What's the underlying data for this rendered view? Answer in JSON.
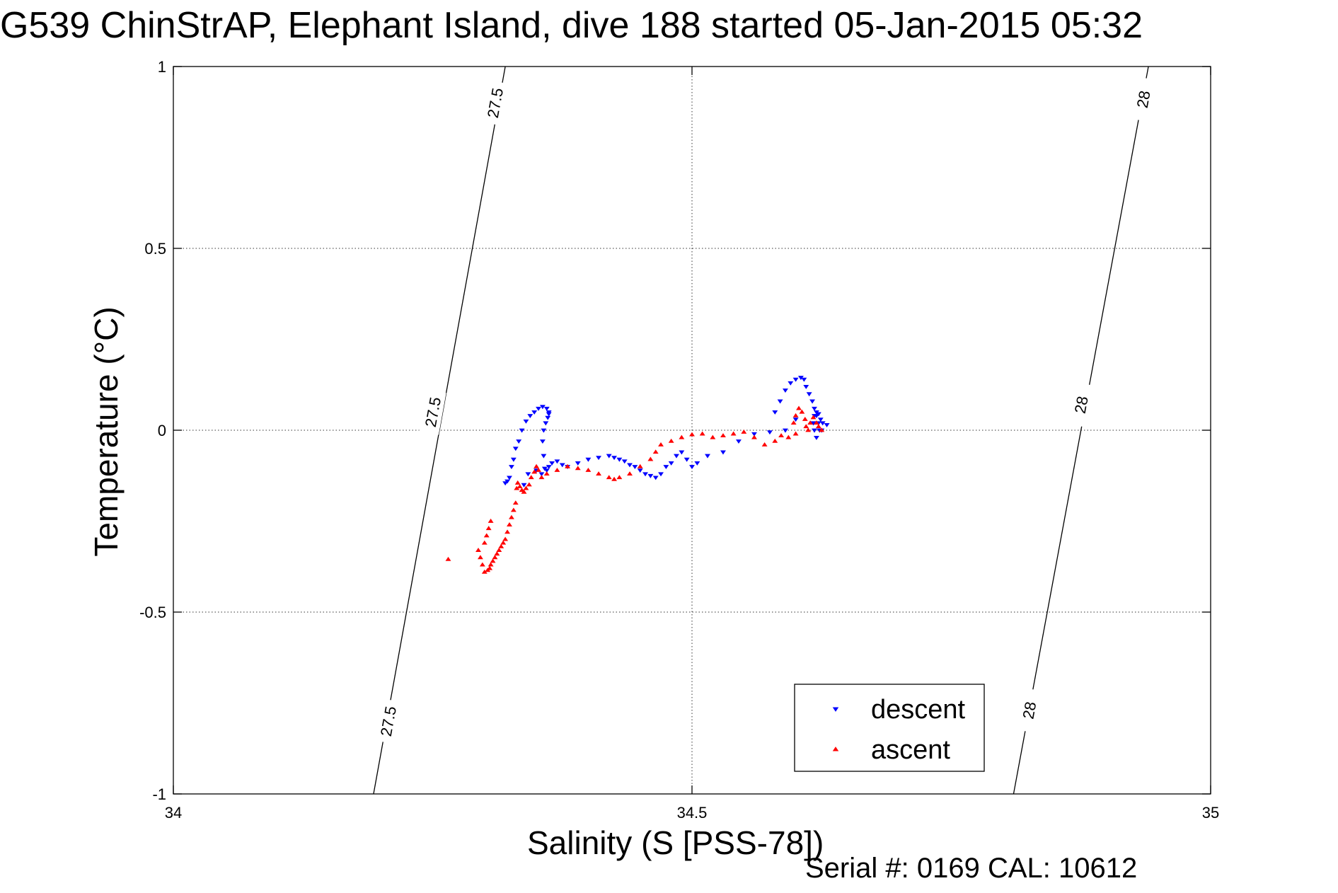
{
  "page": {
    "title": "G539 ChinStrAP, Elephant Island, dive 188 started 05-Jan-2015 05:32",
    "footer": "Serial #: 0169 CAL: 10612"
  },
  "chart_data": {
    "type": "scatter",
    "title": "G539 ChinStrAP, Elephant Island, dive 188 started 05-Jan-2015 05:32",
    "xlabel": "Salinity (S [PSS-78])",
    "ylabel": "Temperature (°C)",
    "xlim": [
      34,
      35
    ],
    "ylim": [
      -1,
      1
    ],
    "xticks": [
      34,
      34.5,
      35
    ],
    "xtick_labels": [
      "34",
      "34.5",
      "35"
    ],
    "yticks": [
      1,
      0.5,
      0,
      -0.5,
      -1
    ],
    "ytick_labels": [
      "1",
      "0.5",
      "0",
      "-0.5",
      "-1"
    ],
    "grid": true,
    "legend_position": "bottom-right",
    "colors": {
      "descent": "#0000ff",
      "ascent": "#ff0000",
      "contour": "#000000"
    },
    "density_contours": [
      {
        "label": "27.5",
        "points": [
          [
            34.193,
            -1.0
          ],
          [
            34.32,
            1.0
          ]
        ],
        "label_positions": [
          [
            34.207,
            -0.8
          ],
          [
            34.25,
            0.05
          ],
          [
            34.31,
            0.9
          ]
        ]
      },
      {
        "label": "28",
        "points": [
          [
            34.81,
            -1.0
          ],
          [
            34.94,
            1.0
          ]
        ],
        "label_positions": [
          [
            34.825,
            -0.77
          ],
          [
            34.875,
            0.07
          ],
          [
            34.935,
            0.91
          ]
        ]
      }
    ],
    "series": [
      {
        "name": "descent",
        "marker": "triangle-down",
        "x": [
          34.58,
          34.585,
          34.59,
          34.595,
          34.6,
          34.605,
          34.608,
          34.61,
          34.613,
          34.616,
          34.618,
          34.62,
          34.622,
          34.623,
          34.62,
          34.618,
          34.617,
          34.618,
          34.62,
          34.622,
          34.624,
          34.626,
          34.63,
          34.625,
          34.6,
          34.59,
          34.575,
          34.56,
          34.545,
          34.53,
          34.515,
          34.505,
          34.5,
          34.495,
          34.49,
          34.485,
          34.48,
          34.475,
          34.47,
          34.465,
          34.46,
          34.455,
          34.45,
          34.445,
          34.44,
          34.435,
          34.43,
          34.425,
          34.42,
          34.41,
          34.4,
          34.39,
          34.38,
          34.375,
          34.37,
          34.365,
          34.362,
          34.36,
          34.358,
          34.357,
          34.356,
          34.357,
          34.359,
          34.361,
          34.362,
          34.362,
          34.36,
          34.356,
          34.352,
          34.348,
          34.344,
          34.34,
          34.336,
          34.333,
          34.33,
          34.328,
          34.326,
          34.324,
          34.322,
          34.32,
          34.338,
          34.342,
          34.35,
          34.355
        ],
        "y": [
          0.05,
          0.08,
          0.11,
          0.13,
          0.14,
          0.145,
          0.14,
          0.12,
          0.1,
          0.08,
          0.06,
          0.04,
          0.02,
          0.0,
          -0.02,
          0.0,
          0.02,
          0.04,
          0.05,
          0.045,
          0.03,
          0.02,
          0.015,
          0.0,
          0.03,
          0.0,
          -0.005,
          -0.01,
          -0.03,
          -0.06,
          -0.07,
          -0.09,
          -0.1,
          -0.08,
          -0.06,
          -0.07,
          -0.09,
          -0.1,
          -0.12,
          -0.13,
          -0.125,
          -0.12,
          -0.11,
          -0.1,
          -0.095,
          -0.085,
          -0.08,
          -0.075,
          -0.07,
          -0.075,
          -0.08,
          -0.09,
          -0.1,
          -0.095,
          -0.085,
          -0.09,
          -0.1,
          -0.11,
          -0.105,
          -0.07,
          -0.03,
          0.0,
          0.02,
          0.035,
          0.045,
          0.05,
          0.06,
          0.065,
          0.06,
          0.05,
          0.04,
          0.025,
          0.0,
          -0.03,
          -0.05,
          -0.08,
          -0.1,
          -0.13,
          -0.14,
          -0.145,
          -0.15,
          -0.12,
          -0.11,
          -0.12
        ]
      },
      {
        "name": "ascent",
        "marker": "triangle-up",
        "x": [
          34.598,
          34.6,
          34.603,
          34.606,
          34.609,
          34.61,
          34.612,
          34.614,
          34.617,
          34.62,
          34.622,
          34.625,
          34.6,
          34.593,
          34.586,
          34.58,
          34.57,
          34.56,
          34.55,
          34.54,
          34.53,
          34.52,
          34.51,
          34.5,
          34.49,
          34.48,
          34.47,
          34.465,
          34.46,
          34.45,
          34.44,
          34.43,
          34.425,
          34.42,
          34.41,
          34.4,
          34.39,
          34.38,
          34.37,
          34.36,
          34.355,
          34.352,
          34.35,
          34.348,
          34.345,
          34.343,
          34.34,
          34.338,
          34.336,
          34.334,
          34.332,
          34.331,
          34.33,
          34.328,
          34.326,
          34.324,
          34.322,
          34.32,
          34.318,
          34.316,
          34.314,
          34.312,
          34.31,
          34.308,
          34.306,
          34.305,
          34.303,
          34.3,
          34.298,
          34.296,
          34.294,
          34.3,
          34.302,
          34.304,
          34.306,
          34.265
        ],
        "y": [
          0.02,
          0.04,
          0.06,
          0.05,
          0.03,
          0.01,
          0.0,
          0.02,
          0.035,
          0.02,
          0.01,
          0.0,
          -0.01,
          -0.02,
          -0.015,
          -0.03,
          -0.04,
          -0.02,
          -0.005,
          -0.01,
          -0.015,
          -0.02,
          -0.01,
          -0.012,
          -0.02,
          -0.03,
          -0.04,
          -0.06,
          -0.08,
          -0.1,
          -0.12,
          -0.13,
          -0.135,
          -0.13,
          -0.12,
          -0.11,
          -0.105,
          -0.1,
          -0.11,
          -0.12,
          -0.13,
          -0.11,
          -0.1,
          -0.115,
          -0.13,
          -0.15,
          -0.16,
          -0.17,
          -0.165,
          -0.155,
          -0.145,
          -0.16,
          -0.2,
          -0.22,
          -0.24,
          -0.26,
          -0.28,
          -0.3,
          -0.31,
          -0.32,
          -0.33,
          -0.34,
          -0.35,
          -0.36,
          -0.37,
          -0.38,
          -0.385,
          -0.39,
          -0.37,
          -0.35,
          -0.33,
          -0.31,
          -0.29,
          -0.27,
          -0.25,
          -0.355
        ]
      }
    ]
  }
}
